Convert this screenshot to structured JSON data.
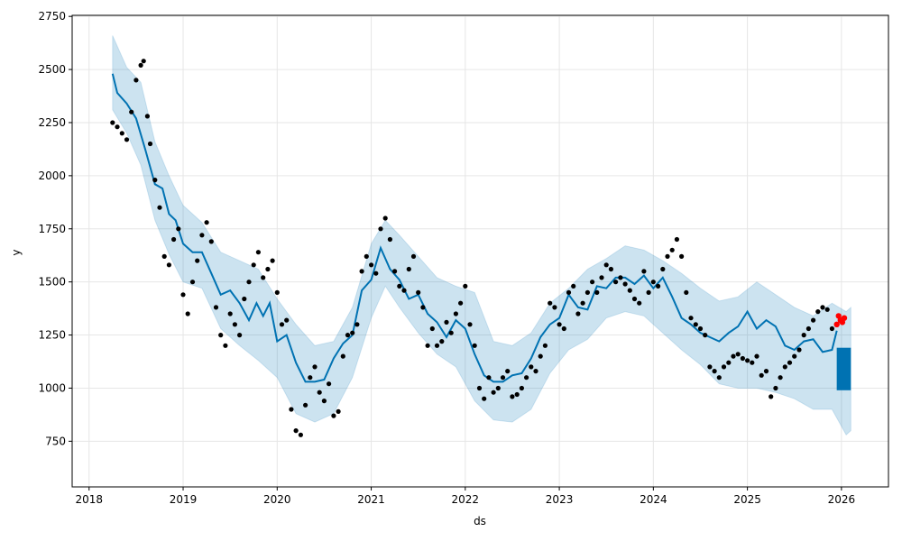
{
  "chart_data": {
    "type": "line",
    "title": "",
    "xlabel": "ds",
    "ylabel": "y",
    "xlim": [
      2017.82,
      2026.5
    ],
    "ylim": [
      535,
      2755
    ],
    "grid": true,
    "x_ticks": [
      {
        "value": 2018,
        "label": "2018"
      },
      {
        "value": 2019,
        "label": "2019"
      },
      {
        "value": 2020,
        "label": "2020"
      },
      {
        "value": 2021,
        "label": "2021"
      },
      {
        "value": 2022,
        "label": "2022"
      },
      {
        "value": 2023,
        "label": "2023"
      },
      {
        "value": 2024,
        "label": "2024"
      },
      {
        "value": 2025,
        "label": "2025"
      },
      {
        "value": 2026,
        "label": "2026"
      }
    ],
    "y_ticks": [
      {
        "value": 750,
        "label": "750"
      },
      {
        "value": 1000,
        "label": "1000"
      },
      {
        "value": 1250,
        "label": "1250"
      },
      {
        "value": 1500,
        "label": "1500"
      },
      {
        "value": 1750,
        "label": "1750"
      },
      {
        "value": 2000,
        "label": "2000"
      },
      {
        "value": 2250,
        "label": "2250"
      },
      {
        "value": 2500,
        "label": "2500"
      },
      {
        "value": 2750,
        "label": "2750"
      }
    ],
    "colors": {
      "forecast_line": "#0072B2",
      "uncertainty_band": "#0072B2",
      "observed_points": "#000000",
      "recent_points": "#ff0000",
      "grid": "#e6e6e6"
    },
    "series": [
      {
        "role": "forecast",
        "x": [
          2018.25,
          2018.3,
          2018.4,
          2018.5,
          2018.6,
          2018.7,
          2018.78,
          2018.85,
          2018.92,
          2019.0,
          2019.1,
          2019.2,
          2019.3,
          2019.4,
          2019.5,
          2019.6,
          2019.7,
          2019.78,
          2019.85,
          2019.92,
          2020.0,
          2020.1,
          2020.2,
          2020.3,
          2020.4,
          2020.5,
          2020.6,
          2020.7,
          2020.8,
          2020.9,
          2021.0,
          2021.1,
          2021.2,
          2021.3,
          2021.4,
          2021.5,
          2021.6,
          2021.7,
          2021.8,
          2021.9,
          2022.0,
          2022.1,
          2022.2,
          2022.3,
          2022.4,
          2022.5,
          2022.6,
          2022.7,
          2022.8,
          2022.9,
          2023.0,
          2023.1,
          2023.2,
          2023.3,
          2023.4,
          2023.5,
          2023.6,
          2023.7,
          2023.8,
          2023.9,
          2024.0,
          2024.1,
          2024.2,
          2024.3,
          2024.4,
          2024.5,
          2024.6,
          2024.7,
          2024.8,
          2024.9,
          2025.0,
          2025.1,
          2025.2,
          2025.3,
          2025.4,
          2025.5,
          2025.6,
          2025.7,
          2025.8,
          2025.9,
          2025.95
        ],
        "y": [
          2480,
          2390,
          2340,
          2270,
          2120,
          1960,
          1940,
          1820,
          1790,
          1680,
          1640,
          1640,
          1540,
          1440,
          1460,
          1400,
          1320,
          1400,
          1340,
          1400,
          1220,
          1250,
          1120,
          1030,
          1030,
          1040,
          1140,
          1210,
          1250,
          1460,
          1510,
          1660,
          1560,
          1510,
          1420,
          1440,
          1350,
          1310,
          1240,
          1320,
          1280,
          1160,
          1060,
          1030,
          1030,
          1060,
          1070,
          1140,
          1240,
          1300,
          1330,
          1440,
          1380,
          1370,
          1480,
          1470,
          1520,
          1520,
          1490,
          1530,
          1470,
          1520,
          1430,
          1330,
          1300,
          1260,
          1240,
          1220,
          1260,
          1290,
          1360,
          1280,
          1320,
          1290,
          1200,
          1180,
          1220,
          1230,
          1170,
          1180,
          1270
        ]
      },
      {
        "role": "uncertainty-upper",
        "x": [
          2018.25,
          2018.4,
          2018.55,
          2018.7,
          2018.85,
          2019.0,
          2019.2,
          2019.4,
          2019.6,
          2019.8,
          2020.0,
          2020.2,
          2020.4,
          2020.6,
          2020.8,
          2021.0,
          2021.15,
          2021.3,
          2021.5,
          2021.7,
          2021.9,
          2022.1,
          2022.3,
          2022.5,
          2022.7,
          2022.9,
          2023.1,
          2023.3,
          2023.5,
          2023.7,
          2023.9,
          2024.1,
          2024.3,
          2024.5,
          2024.7,
          2024.9,
          2025.1,
          2025.3,
          2025.5,
          2025.7,
          2025.9,
          2026.05,
          2026.1
        ],
        "y": [
          2660,
          2510,
          2440,
          2160,
          2000,
          1860,
          1780,
          1640,
          1600,
          1560,
          1420,
          1300,
          1200,
          1220,
          1380,
          1680,
          1790,
          1720,
          1620,
          1520,
          1480,
          1450,
          1220,
          1200,
          1260,
          1400,
          1470,
          1560,
          1610,
          1670,
          1650,
          1600,
          1540,
          1470,
          1410,
          1430,
          1500,
          1440,
          1380,
          1340,
          1400,
          1360,
          1380
        ]
      },
      {
        "role": "uncertainty-lower",
        "x": [
          2018.25,
          2018.4,
          2018.55,
          2018.7,
          2018.85,
          2019.0,
          2019.2,
          2019.4,
          2019.6,
          2019.8,
          2020.0,
          2020.2,
          2020.4,
          2020.6,
          2020.8,
          2021.0,
          2021.15,
          2021.3,
          2021.5,
          2021.7,
          2021.9,
          2022.1,
          2022.3,
          2022.5,
          2022.7,
          2022.9,
          2023.1,
          2023.3,
          2023.5,
          2023.7,
          2023.9,
          2024.1,
          2024.3,
          2024.5,
          2024.7,
          2024.9,
          2025.1,
          2025.3,
          2025.5,
          2025.7,
          2025.9,
          2026.05,
          2026.1
        ],
        "y": [
          2310,
          2200,
          2050,
          1790,
          1630,
          1500,
          1470,
          1280,
          1200,
          1130,
          1050,
          880,
          840,
          880,
          1050,
          1330,
          1480,
          1380,
          1260,
          1160,
          1100,
          940,
          850,
          840,
          900,
          1070,
          1180,
          1230,
          1330,
          1360,
          1340,
          1260,
          1180,
          1110,
          1020,
          1000,
          1000,
          980,
          950,
          900,
          900,
          780,
          800
        ]
      },
      {
        "role": "forecast-future",
        "x_range": [
          2025.95,
          2026.1
        ],
        "y_range": [
          990,
          1190
        ]
      },
      {
        "role": "observed",
        "x": [
          2018.25,
          2018.3,
          2018.35,
          2018.4,
          2018.45,
          2018.5,
          2018.55,
          2018.58,
          2018.62,
          2018.65,
          2018.7,
          2018.75,
          2018.8,
          2018.85,
          2018.9,
          2018.95,
          2019.0,
          2019.05,
          2019.1,
          2019.15,
          2019.2,
          2019.25,
          2019.3,
          2019.35,
          2019.4,
          2019.45,
          2019.5,
          2019.55,
          2019.6,
          2019.65,
          2019.7,
          2019.75,
          2019.8,
          2019.85,
          2019.9,
          2019.95,
          2020.0,
          2020.05,
          2020.1,
          2020.15,
          2020.2,
          2020.25,
          2020.3,
          2020.35,
          2020.4,
          2020.45,
          2020.5,
          2020.55,
          2020.6,
          2020.65,
          2020.7,
          2020.75,
          2020.8,
          2020.85,
          2020.9,
          2020.95,
          2021.0,
          2021.05,
          2021.1,
          2021.15,
          2021.2,
          2021.25,
          2021.3,
          2021.35,
          2021.4,
          2021.45,
          2021.5,
          2021.55,
          2021.6,
          2021.65,
          2021.7,
          2021.75,
          2021.8,
          2021.85,
          2021.9,
          2021.95,
          2022.0,
          2022.05,
          2022.1,
          2022.15,
          2022.2,
          2022.25,
          2022.3,
          2022.35,
          2022.4,
          2022.45,
          2022.5,
          2022.55,
          2022.6,
          2022.65,
          2022.7,
          2022.75,
          2022.8,
          2022.85,
          2022.9,
          2022.95,
          2023.0,
          2023.05,
          2023.1,
          2023.15,
          2023.2,
          2023.25,
          2023.3,
          2023.35,
          2023.4,
          2023.45,
          2023.5,
          2023.55,
          2023.6,
          2023.65,
          2023.7,
          2023.75,
          2023.8,
          2023.85,
          2023.9,
          2023.95,
          2024.0,
          2024.05,
          2024.1,
          2024.15,
          2024.2,
          2024.25,
          2024.3,
          2024.35,
          2024.4,
          2024.45,
          2024.5,
          2024.55,
          2024.6,
          2024.65,
          2024.7,
          2024.75,
          2024.8,
          2024.85,
          2024.9,
          2024.95,
          2025.0,
          2025.05,
          2025.1,
          2025.15,
          2025.2,
          2025.25,
          2025.3,
          2025.35,
          2025.4,
          2025.45,
          2025.5,
          2025.55,
          2025.6,
          2025.65,
          2025.7,
          2025.75,
          2025.8,
          2025.85,
          2025.9
        ],
        "y": [
          2250,
          2230,
          2200,
          2170,
          2300,
          2450,
          2520,
          2540,
          2280,
          2150,
          1980,
          1850,
          1620,
          1580,
          1700,
          1750,
          1440,
          1350,
          1500,
          1600,
          1720,
          1780,
          1690,
          1380,
          1250,
          1200,
          1350,
          1300,
          1250,
          1420,
          1500,
          1580,
          1640,
          1520,
          1560,
          1600,
          1450,
          1300,
          1320,
          900,
          800,
          780,
          920,
          1050,
          1100,
          980,
          940,
          1020,
          870,
          890,
          1150,
          1250,
          1260,
          1300,
          1550,
          1620,
          1580,
          1540,
          1750,
          1800,
          1700,
          1550,
          1480,
          1460,
          1560,
          1620,
          1450,
          1380,
          1200,
          1280,
          1200,
          1220,
          1310,
          1260,
          1350,
          1400,
          1480,
          1300,
          1200,
          1000,
          950,
          1050,
          980,
          1000,
          1050,
          1080,
          960,
          970,
          1000,
          1050,
          1100,
          1080,
          1150,
          1200,
          1400,
          1380,
          1300,
          1280,
          1450,
          1480,
          1350,
          1400,
          1450,
          1500,
          1450,
          1520,
          1580,
          1560,
          1500,
          1520,
          1490,
          1460,
          1420,
          1400,
          1550,
          1450,
          1500,
          1480,
          1560,
          1620,
          1650,
          1700,
          1620,
          1450,
          1330,
          1300,
          1280,
          1250,
          1100,
          1080,
          1050,
          1100,
          1120,
          1150,
          1160,
          1140,
          1130,
          1120,
          1150,
          1060,
          1080,
          960,
          1000,
          1050,
          1100,
          1120,
          1150,
          1180,
          1250,
          1280,
          1320,
          1360,
          1380,
          1370,
          1280
        ]
      },
      {
        "role": "recent",
        "x": [
          2025.95,
          2025.97,
          2025.99,
          2026.01,
          2026.03
        ],
        "y": [
          1300,
          1340,
          1320,
          1310,
          1330
        ]
      }
    ]
  }
}
